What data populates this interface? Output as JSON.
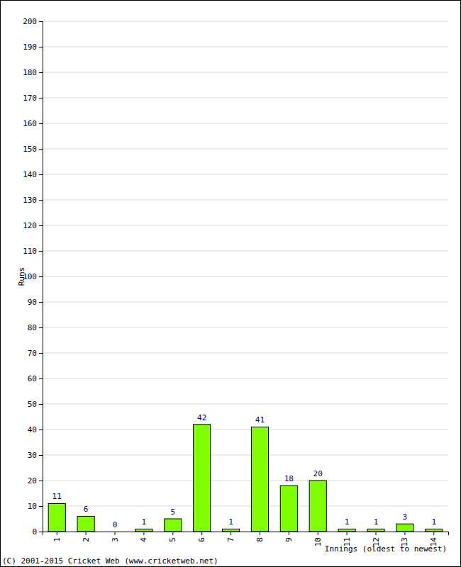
{
  "chart_data": {
    "type": "bar",
    "x_label": "Innings (oldest to newest)",
    "y_label": "Runs",
    "annotations": [
      "(C) 2001-2015 Cricket Web (www.cricketweb.net)"
    ],
    "categories": [
      "1",
      "2",
      "3",
      "4",
      "5",
      "6",
      "7",
      "8",
      "9",
      "10",
      "11",
      "12",
      "13",
      "14"
    ],
    "values": [
      11,
      6,
      0,
      1,
      5,
      42,
      1,
      41,
      18,
      20,
      1,
      1,
      3,
      1
    ],
    "color": "#80ff00",
    "ylim": [
      0,
      200
    ],
    "yticks": [
      0,
      10,
      20,
      30,
      40,
      50,
      60,
      70,
      80,
      90,
      100,
      110,
      120,
      130,
      140,
      150,
      160,
      170,
      180,
      190,
      200
    ],
    "grid": true,
    "data_labels": true
  }
}
